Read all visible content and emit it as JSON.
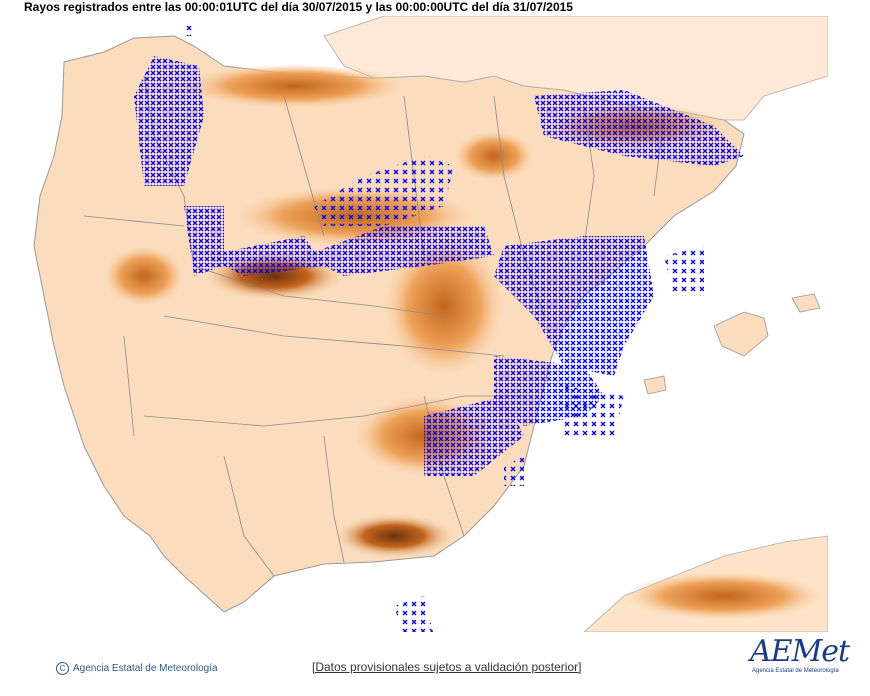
{
  "title": "Rayos registrados entre las 00:00:01UTC del día 30/07/2015 y las 00:00:00UTC del día 31/07/2015",
  "footer": {
    "copyright_symbol": "C",
    "agency": "Agencia Estatal de Meteorología",
    "disclaimer": "[Datos provisionales sujetos a validación posterior]"
  },
  "logo": {
    "text": "AEMet",
    "subtext": "Agencia Estatal de Meteorología"
  },
  "colors": {
    "sea": "#ffffff",
    "land_low": "#fde6cf",
    "land_mid": "#f6c08a",
    "land_high": "#e68a3c",
    "land_peak": "#7a3a0e",
    "borders": "#8a8a8a",
    "lightning": "#0000ff"
  }
}
